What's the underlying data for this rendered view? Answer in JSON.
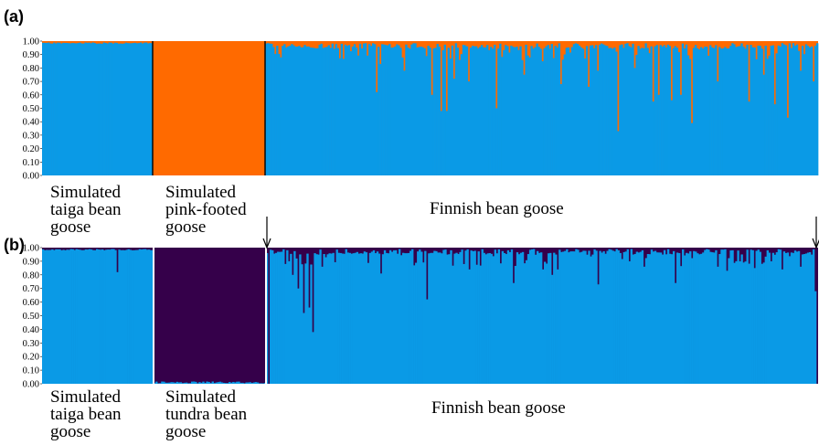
{
  "chart_data": [
    {
      "type": "bar",
      "panel": "(a)",
      "stacked": true,
      "ylim": [
        0,
        1
      ],
      "yticks": [
        "0.00",
        "0.10",
        "0.20",
        "0.30",
        "0.40",
        "0.50",
        "0.60",
        "0.70",
        "0.80",
        "0.90",
        "1.00"
      ],
      "groups": [
        {
          "label_lines": [
            "Simulated",
            "taiga bean",
            "goose"
          ],
          "individuals": 60,
          "base_value": 0.99
        },
        {
          "label_lines": [
            "Simulated",
            "pink-footed",
            "goose"
          ],
          "individuals": 60,
          "base_value": 0.0
        },
        {
          "label_lines": [
            "Finnish bean goose"
          ],
          "individuals": 300,
          "base_value": 0.985
        }
      ],
      "series_colors": [
        "#0A9AE6",
        "#FF6A00"
      ],
      "notable_dips_finnish": [
        {
          "index": 60,
          "value": 0.62
        },
        {
          "index": 62,
          "value": 0.83
        },
        {
          "index": 75,
          "value": 0.78
        },
        {
          "index": 90,
          "value": 0.6
        },
        {
          "index": 95,
          "value": 0.48
        },
        {
          "index": 98,
          "value": 0.48
        },
        {
          "index": 102,
          "value": 0.72
        },
        {
          "index": 110,
          "value": 0.7
        },
        {
          "index": 125,
          "value": 0.5
        },
        {
          "index": 140,
          "value": 0.75
        },
        {
          "index": 150,
          "value": 0.85
        },
        {
          "index": 160,
          "value": 0.68
        },
        {
          "index": 175,
          "value": 0.66
        },
        {
          "index": 180,
          "value": 0.78
        },
        {
          "index": 191,
          "value": 0.33
        },
        {
          "index": 200,
          "value": 0.8
        },
        {
          "index": 210,
          "value": 0.55
        },
        {
          "index": 213,
          "value": 0.6
        },
        {
          "index": 220,
          "value": 0.56
        },
        {
          "index": 225,
          "value": 0.6
        },
        {
          "index": 231,
          "value": 0.39
        },
        {
          "index": 245,
          "value": 0.7
        },
        {
          "index": 262,
          "value": 0.55
        },
        {
          "index": 270,
          "value": 0.75
        },
        {
          "index": 276,
          "value": 0.53
        },
        {
          "index": 283,
          "value": 0.43
        },
        {
          "index": 290,
          "value": 0.78
        },
        {
          "index": 297,
          "value": 0.7
        }
      ]
    },
    {
      "type": "bar",
      "panel": "(b)",
      "stacked": true,
      "ylim": [
        0,
        1
      ],
      "yticks": [
        "0.00",
        "0.10",
        "0.20",
        "0.30",
        "0.40",
        "0.50",
        "0.60",
        "0.70",
        "0.80",
        "0.90",
        "1.00"
      ],
      "groups": [
        {
          "label_lines": [
            "Simulated",
            "taiga bean",
            "goose"
          ],
          "individuals": 60,
          "base_value": 0.99
        },
        {
          "label_lines": [
            "Simulated",
            "tundra bean",
            "goose"
          ],
          "individuals": 60,
          "base_value": 0.01
        },
        {
          "label_lines": [
            "Finnish bean goose"
          ],
          "individuals": 300,
          "base_value": 0.99
        }
      ],
      "series_colors": [
        "#0A9AE6",
        "#35004A"
      ],
      "notable_dips_taiga": [
        {
          "index": 40,
          "value": 0.82
        }
      ],
      "notable_dips_finnish": [
        {
          "index": 1,
          "value": 0.0
        },
        {
          "index": 10,
          "value": 0.88
        },
        {
          "index": 12,
          "value": 0.9
        },
        {
          "index": 14,
          "value": 0.8
        },
        {
          "index": 17,
          "value": 0.7
        },
        {
          "index": 20,
          "value": 0.52
        },
        {
          "index": 23,
          "value": 0.56
        },
        {
          "index": 25,
          "value": 0.38
        },
        {
          "index": 30,
          "value": 0.86
        },
        {
          "index": 62,
          "value": 0.81
        },
        {
          "index": 80,
          "value": 0.87
        },
        {
          "index": 87,
          "value": 0.62
        },
        {
          "index": 110,
          "value": 0.84
        },
        {
          "index": 134,
          "value": 0.74
        },
        {
          "index": 150,
          "value": 0.84
        },
        {
          "index": 155,
          "value": 0.8
        },
        {
          "index": 158,
          "value": 0.84
        },
        {
          "index": 180,
          "value": 0.73
        },
        {
          "index": 205,
          "value": 0.86
        },
        {
          "index": 222,
          "value": 0.74
        },
        {
          "index": 245,
          "value": 0.86
        },
        {
          "index": 250,
          "value": 0.83
        },
        {
          "index": 265,
          "value": 0.85
        },
        {
          "index": 280,
          "value": 0.84
        },
        {
          "index": 290,
          "value": 0.86
        },
        {
          "index": 298,
          "value": 0.68
        },
        {
          "index": 299,
          "value": 0.0
        }
      ],
      "arrows_at_finnish_indices": [
        0,
        299
      ]
    }
  ]
}
